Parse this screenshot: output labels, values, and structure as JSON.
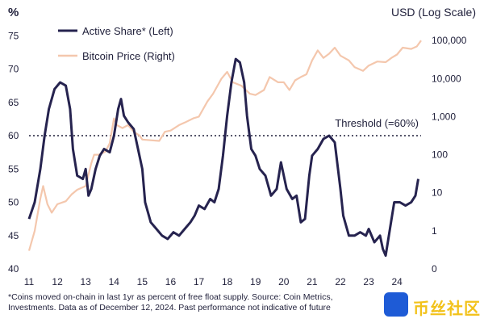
{
  "chart_data": {
    "type": "line",
    "y_left_unit": "%",
    "y_right_unit": "USD (Log Scale)",
    "threshold_label": "Threshold (=60%)",
    "threshold_value": 60,
    "y_left_ticks": [
      "75",
      "70",
      "65",
      "60",
      "55",
      "50",
      "45",
      "40"
    ],
    "y_right_ticks": [
      "100,000",
      "10,000",
      "1,000",
      "100",
      "10",
      "1",
      "0"
    ],
    "x_ticks": [
      "11",
      "12",
      "13",
      "14",
      "15",
      "16",
      "17",
      "18",
      "19",
      "20",
      "21",
      "22",
      "23",
      "24"
    ],
    "ylim_left": [
      40,
      76
    ],
    "ylim_right_log": [
      0.1,
      200000
    ],
    "series": [
      {
        "name": "Active Share* (Left)",
        "color": "#26234f",
        "axis": "left",
        "points": [
          [
            11.0,
            47.5
          ],
          [
            11.2,
            50
          ],
          [
            11.4,
            55
          ],
          [
            11.55,
            60
          ],
          [
            11.7,
            64
          ],
          [
            11.9,
            67
          ],
          [
            12.1,
            68
          ],
          [
            12.3,
            67.5
          ],
          [
            12.45,
            64
          ],
          [
            12.55,
            58
          ],
          [
            12.7,
            54
          ],
          [
            12.9,
            53.5
          ],
          [
            13.0,
            55
          ],
          [
            13.1,
            51
          ],
          [
            13.2,
            52
          ],
          [
            13.35,
            55
          ],
          [
            13.5,
            57
          ],
          [
            13.65,
            58
          ],
          [
            13.85,
            57.5
          ],
          [
            14.0,
            60
          ],
          [
            14.15,
            64
          ],
          [
            14.25,
            65.5
          ],
          [
            14.35,
            63
          ],
          [
            14.5,
            62
          ],
          [
            14.7,
            61
          ],
          [
            14.85,
            58
          ],
          [
            15.0,
            55
          ],
          [
            15.1,
            50
          ],
          [
            15.3,
            47
          ],
          [
            15.5,
            46
          ],
          [
            15.7,
            45
          ],
          [
            15.9,
            44.5
          ],
          [
            16.1,
            45.5
          ],
          [
            16.3,
            45
          ],
          [
            16.5,
            46
          ],
          [
            16.7,
            47
          ],
          [
            16.85,
            48
          ],
          [
            17.0,
            49.5
          ],
          [
            17.2,
            49
          ],
          [
            17.4,
            50.5
          ],
          [
            17.55,
            50
          ],
          [
            17.7,
            52
          ],
          [
            17.85,
            57
          ],
          [
            18.0,
            63
          ],
          [
            18.15,
            68
          ],
          [
            18.3,
            71.5
          ],
          [
            18.45,
            71
          ],
          [
            18.6,
            68
          ],
          [
            18.7,
            63
          ],
          [
            18.85,
            58
          ],
          [
            19.0,
            57
          ],
          [
            19.15,
            55
          ],
          [
            19.35,
            54
          ],
          [
            19.55,
            51
          ],
          [
            19.75,
            52
          ],
          [
            19.9,
            56
          ],
          [
            20.1,
            52
          ],
          [
            20.3,
            50.5
          ],
          [
            20.45,
            51
          ],
          [
            20.6,
            47
          ],
          [
            20.75,
            47.5
          ],
          [
            20.9,
            54
          ],
          [
            21.0,
            57
          ],
          [
            21.2,
            58
          ],
          [
            21.4,
            59.5
          ],
          [
            21.6,
            60
          ],
          [
            21.8,
            59
          ],
          [
            22.0,
            52
          ],
          [
            22.1,
            48
          ],
          [
            22.3,
            45
          ],
          [
            22.5,
            45
          ],
          [
            22.7,
            45.5
          ],
          [
            22.9,
            45
          ],
          [
            23.0,
            46
          ],
          [
            23.2,
            44
          ],
          [
            23.4,
            45
          ],
          [
            23.5,
            43
          ],
          [
            23.6,
            42
          ],
          [
            23.75,
            46
          ],
          [
            23.9,
            50
          ],
          [
            24.1,
            50
          ],
          [
            24.3,
            49.5
          ],
          [
            24.5,
            50
          ],
          [
            24.65,
            51
          ],
          [
            24.75,
            53.5
          ]
        ]
      },
      {
        "name": "Bitcoin Price (Right)",
        "color": "#f4c7ad",
        "axis": "right",
        "points": [
          [
            11.0,
            0.3
          ],
          [
            11.2,
            1
          ],
          [
            11.4,
            7
          ],
          [
            11.5,
            15
          ],
          [
            11.65,
            5
          ],
          [
            11.8,
            3
          ],
          [
            12.0,
            5
          ],
          [
            12.3,
            6
          ],
          [
            12.5,
            9
          ],
          [
            12.7,
            12
          ],
          [
            13.0,
            15
          ],
          [
            13.2,
            60
          ],
          [
            13.3,
            100
          ],
          [
            13.45,
            100
          ],
          [
            13.7,
            120
          ],
          [
            13.85,
            200
          ],
          [
            14.0,
            900
          ],
          [
            14.1,
            600
          ],
          [
            14.3,
            500
          ],
          [
            14.5,
            600
          ],
          [
            14.7,
            400
          ],
          [
            14.9,
            320
          ],
          [
            15.0,
            250
          ],
          [
            15.3,
            240
          ],
          [
            15.6,
            230
          ],
          [
            15.8,
            400
          ],
          [
            16.0,
            430
          ],
          [
            16.3,
            600
          ],
          [
            16.5,
            700
          ],
          [
            16.8,
            900
          ],
          [
            17.0,
            1000
          ],
          [
            17.3,
            2500
          ],
          [
            17.5,
            4000
          ],
          [
            17.8,
            10000
          ],
          [
            18.0,
            15000
          ],
          [
            18.2,
            8000
          ],
          [
            18.5,
            6500
          ],
          [
            18.8,
            4000
          ],
          [
            19.0,
            3700
          ],
          [
            19.3,
            5000
          ],
          [
            19.5,
            11000
          ],
          [
            19.8,
            8000
          ],
          [
            20.0,
            8000
          ],
          [
            20.2,
            5000
          ],
          [
            20.4,
            9000
          ],
          [
            20.6,
            11000
          ],
          [
            20.8,
            13000
          ],
          [
            21.0,
            30000
          ],
          [
            21.2,
            55000
          ],
          [
            21.4,
            35000
          ],
          [
            21.6,
            45000
          ],
          [
            21.8,
            65000
          ],
          [
            22.0,
            40000
          ],
          [
            22.3,
            30000
          ],
          [
            22.5,
            20000
          ],
          [
            22.8,
            16000
          ],
          [
            23.0,
            22000
          ],
          [
            23.3,
            28000
          ],
          [
            23.6,
            27000
          ],
          [
            23.8,
            35000
          ],
          [
            24.0,
            43000
          ],
          [
            24.2,
            65000
          ],
          [
            24.5,
            60000
          ],
          [
            24.7,
            70000
          ],
          [
            24.85,
            100000
          ]
        ]
      }
    ],
    "footnote_line1": "*Coins moved on-chain in last 1yr as percent of free float supply. Source: Coin Metrics,",
    "footnote_line2": "Investments. Data as of December 12, 2024. Past performance not indicative of future"
  },
  "watermark_text": "币丝社区"
}
